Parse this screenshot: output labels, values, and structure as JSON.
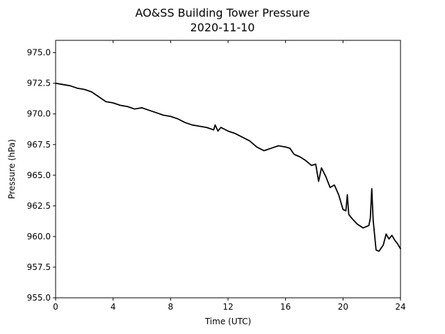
{
  "chart_data": {
    "type": "line",
    "title": "AO&SS Building Tower Pressure",
    "subtitle": "2020-11-10",
    "xlabel": "Time (UTC)",
    "ylabel": "Pressure (hPa)",
    "xlim": [
      0,
      24
    ],
    "ylim": [
      955.0,
      976.0
    ],
    "xticks": [
      0,
      4,
      8,
      12,
      16,
      20,
      24
    ],
    "xtick_labels": [
      "0",
      "4",
      "8",
      "12",
      "16",
      "20",
      "24"
    ],
    "yticks": [
      955.0,
      957.5,
      960.0,
      962.5,
      965.0,
      967.5,
      970.0,
      972.5,
      975.0
    ],
    "ytick_labels": [
      "955.0",
      "957.5",
      "960.0",
      "962.5",
      "965.0",
      "967.5",
      "970.0",
      "972.5",
      "975.0"
    ],
    "grid": false,
    "line_color": "#000000",
    "series": [
      {
        "x": [
          0,
          0.5,
          1,
          1.5,
          2,
          2.5,
          3,
          3.5,
          4,
          4.5,
          5,
          5.5,
          6,
          6.5,
          7,
          7.5,
          8,
          8.5,
          9,
          9.5,
          10,
          10.5,
          11,
          11.1,
          11.3,
          11.5,
          12,
          12.5,
          13,
          13.5,
          14,
          14.5,
          15,
          15.5,
          16,
          16.3,
          16.6,
          17,
          17.4,
          17.8,
          18.1,
          18.3,
          18.5,
          18.8,
          19.1,
          19.4,
          19.7,
          20,
          20.2,
          20.3,
          20.4,
          20.6,
          21,
          21.4,
          21.8,
          21.9,
          22.0,
          22.1,
          22.3,
          22.5,
          22.8,
          23.0,
          23.2,
          23.4,
          23.6,
          23.8,
          24.0
        ],
        "y": [
          972.5,
          972.4,
          972.3,
          972.1,
          972.0,
          971.8,
          971.4,
          971.0,
          970.9,
          970.7,
          970.6,
          970.4,
          970.5,
          970.3,
          970.1,
          969.9,
          969.8,
          969.6,
          969.3,
          969.1,
          969.0,
          968.9,
          968.7,
          969.1,
          968.6,
          968.9,
          968.6,
          968.4,
          968.1,
          967.8,
          967.3,
          967.0,
          967.2,
          967.4,
          967.3,
          967.2,
          966.7,
          966.5,
          966.2,
          965.8,
          965.9,
          964.5,
          965.6,
          964.9,
          964.0,
          964.2,
          963.4,
          962.2,
          962.1,
          963.4,
          961.8,
          961.5,
          961.0,
          960.7,
          960.9,
          961.5,
          963.9,
          961.3,
          958.9,
          958.8,
          959.3,
          960.2,
          959.8,
          960.1,
          959.7,
          959.4,
          959.0
        ]
      }
    ]
  }
}
